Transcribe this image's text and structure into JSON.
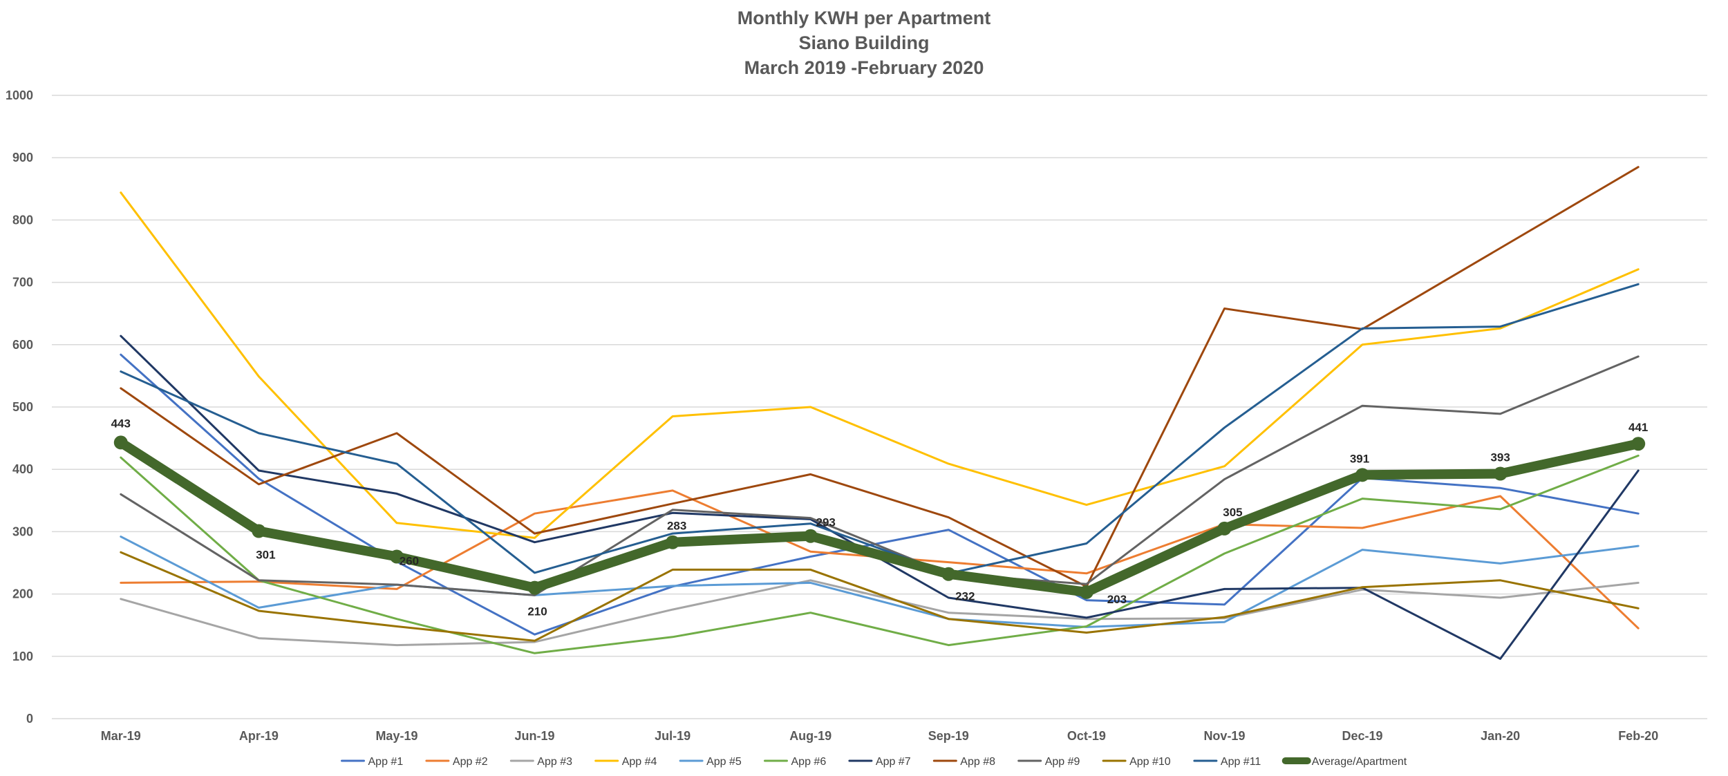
{
  "chart_data": {
    "type": "line",
    "title": "Monthly KWH per Apartment",
    "subtitle_lines": [
      "Siano Building",
      "March 2019 -February 2020"
    ],
    "categories": [
      "Mar-19",
      "Apr-19",
      "May-19",
      "Jun-19",
      "Jul-19",
      "Aug-19",
      "Sep-19",
      "Oct-19",
      "Nov-19",
      "Dec-19",
      "Jan-20",
      "Feb-20"
    ],
    "ylim": [
      0,
      1000
    ],
    "yticks": [
      0,
      100,
      200,
      300,
      400,
      500,
      600,
      700,
      800,
      900,
      1000
    ],
    "grid": true,
    "legend_position": "bottom",
    "series": [
      {
        "name": "App #1",
        "color": "#4472C4",
        "values": [
          584,
          385,
          252,
          135,
          212,
          260,
          303,
          190,
          183,
          386,
          370,
          329
        ]
      },
      {
        "name": "App #2",
        "color": "#ED7D31",
        "values": [
          218,
          220,
          208,
          329,
          366,
          268,
          251,
          233,
          312,
          306,
          357,
          145
        ]
      },
      {
        "name": "App #3",
        "color": "#A5A5A5",
        "values": [
          192,
          129,
          118,
          123,
          175,
          222,
          170,
          160,
          161,
          207,
          194,
          218
        ]
      },
      {
        "name": "App #4",
        "color": "#FFC000",
        "values": [
          844,
          549,
          314,
          290,
          485,
          500,
          409,
          343,
          405,
          600,
          626,
          721
        ]
      },
      {
        "name": "App #5",
        "color": "#5B9BD5",
        "values": [
          292,
          178,
          215,
          198,
          213,
          218,
          160,
          147,
          155,
          271,
          249,
          277
        ]
      },
      {
        "name": "App #6",
        "color": "#70AD47",
        "values": [
          419,
          222,
          160,
          105,
          131,
          170,
          118,
          148,
          265,
          353,
          336,
          422
        ]
      },
      {
        "name": "App #7",
        "color": "#203864",
        "values": [
          614,
          398,
          361,
          283,
          330,
          320,
          194,
          162,
          208,
          210,
          96,
          398
        ]
      },
      {
        "name": "App #8",
        "color": "#9E480E",
        "values": [
          530,
          376,
          458,
          297,
          345,
          392,
          323,
          212,
          658,
          625,
          755,
          885
        ]
      },
      {
        "name": "App #9",
        "color": "#636363",
        "values": [
          360,
          222,
          215,
          198,
          335,
          322,
          232,
          216,
          384,
          502,
          489,
          581
        ]
      },
      {
        "name": "App #10",
        "color": "#997300",
        "values": [
          267,
          173,
          148,
          125,
          239,
          239,
          160,
          138,
          163,
          211,
          222,
          177
        ]
      },
      {
        "name": "App #11",
        "color": "#255E91",
        "values": [
          557,
          458,
          409,
          234,
          297,
          313,
          233,
          281,
          467,
          626,
          629,
          697
        ]
      },
      {
        "name": "Average/Apartment",
        "color": "#43682B",
        "bold": true,
        "values": [
          443,
          301,
          260,
          210,
          283,
          293,
          232,
          203,
          305,
          391,
          393,
          441
        ],
        "data_labels": [
          "443",
          "301",
          "260",
          "210",
          "283",
          "293",
          "232",
          "203",
          "305",
          "391",
          "393",
          "441"
        ]
      }
    ]
  }
}
